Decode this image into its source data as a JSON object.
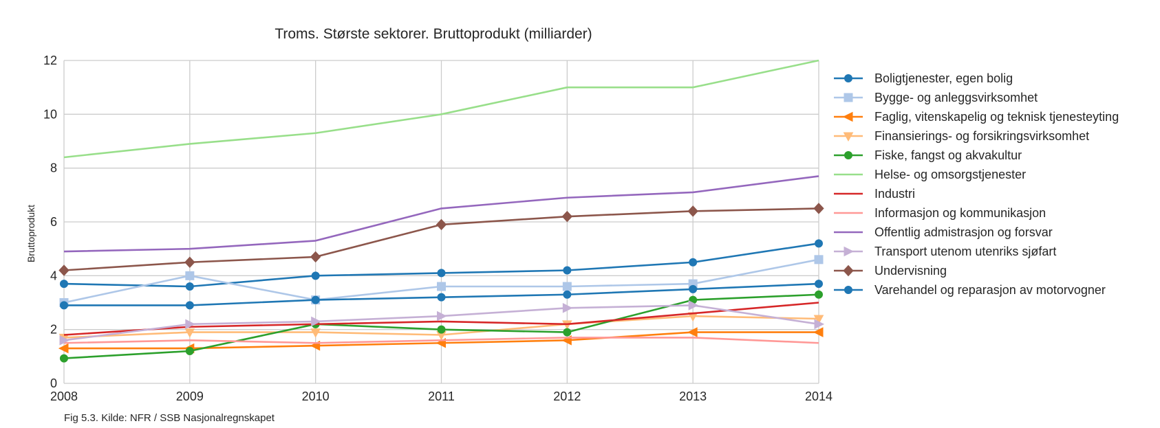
{
  "chart_data": {
    "type": "line",
    "title": "Troms. Største sektorer. Bruttoprodukt (milliarder)",
    "xlabel": "",
    "ylabel": "Bruttoprodukt",
    "x": [
      "2008",
      "2009",
      "2010",
      "2011",
      "2012",
      "2013",
      "2014"
    ],
    "ylim": [
      0,
      12
    ],
    "yticks": [
      "0",
      "2",
      "4",
      "6",
      "8",
      "10",
      "12"
    ],
    "grid": true,
    "legend_position": "right",
    "source": "Fig 5.3. Kilde: NFR / SSB Nasjonalregnskapet",
    "series": [
      {
        "name": "Boligtjenester, egen bolig",
        "color": "#1f77b4",
        "marker": "circle",
        "values": [
          3.7,
          3.6,
          4.0,
          4.1,
          4.2,
          4.5,
          5.2
        ]
      },
      {
        "name": "Bygge- og anleggsvirksomhet",
        "color": "#aec7e8",
        "marker": "square",
        "values": [
          3.0,
          4.0,
          3.1,
          3.6,
          3.6,
          3.7,
          4.6
        ]
      },
      {
        "name": "Faglig, vitenskapelig og teknisk tjenesteyting",
        "color": "#ff7f0e",
        "marker": "triangle-left",
        "values": [
          1.3,
          1.3,
          1.4,
          1.5,
          1.6,
          1.9,
          1.9
        ]
      },
      {
        "name": "Finansierings- og forsikringsvirksomhet",
        "color": "#ffbb78",
        "marker": "triangle-down",
        "values": [
          1.7,
          1.9,
          1.9,
          1.8,
          2.2,
          2.5,
          2.4
        ]
      },
      {
        "name": "Fiske, fangst og akvakultur",
        "color": "#2ca02c",
        "marker": "circle",
        "values": [
          0.93,
          1.2,
          2.2,
          2.0,
          1.9,
          3.1,
          3.3
        ]
      },
      {
        "name": "Helse- og omsorgstjenester",
        "color": "#98df8a",
        "marker": "none",
        "values": [
          8.4,
          8.9,
          9.3,
          10.0,
          11.0,
          11.0,
          12.0
        ]
      },
      {
        "name": "Industri",
        "color": "#d62728",
        "marker": "none",
        "values": [
          1.8,
          2.1,
          2.2,
          2.3,
          2.2,
          2.6,
          3.0
        ]
      },
      {
        "name": "Informasjon og kommunikasjon",
        "color": "#ff9896",
        "marker": "none",
        "values": [
          1.5,
          1.6,
          1.5,
          1.6,
          1.7,
          1.7,
          1.5
        ]
      },
      {
        "name": "Offentlig admistrasjon og forsvar",
        "color": "#9467bd",
        "marker": "none",
        "values": [
          4.9,
          5.0,
          5.3,
          6.5,
          6.9,
          7.1,
          7.7
        ]
      },
      {
        "name": "Transport utenom utenriks sjøfart",
        "color": "#c5b0d5",
        "marker": "triangle-right",
        "values": [
          1.6,
          2.2,
          2.3,
          2.5,
          2.8,
          2.9,
          2.2
        ]
      },
      {
        "name": "Undervisning",
        "color": "#8c564b",
        "marker": "diamond",
        "values": [
          4.2,
          4.5,
          4.7,
          5.9,
          6.2,
          6.4,
          6.5
        ]
      },
      {
        "name": "Varehandel og reparasjon av motorvogner",
        "color": "#1f77b4",
        "marker": "circle",
        "values": [
          2.9,
          2.9,
          3.1,
          3.2,
          3.3,
          3.5,
          3.7
        ]
      }
    ]
  }
}
